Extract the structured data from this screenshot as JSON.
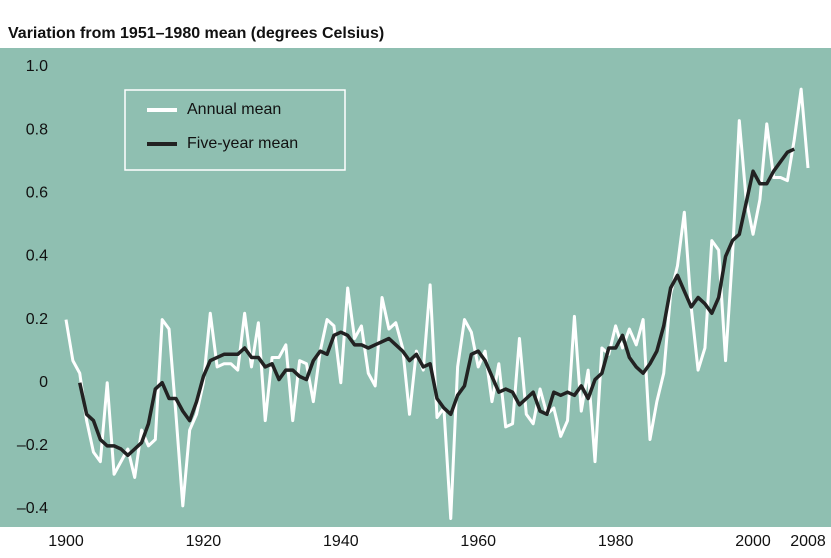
{
  "chart_data": {
    "type": "line",
    "title": "Variation from 1951–1980 mean (degrees Celsius)",
    "x": [
      1900,
      1901,
      1902,
      1903,
      1904,
      1905,
      1906,
      1907,
      1908,
      1909,
      1910,
      1911,
      1912,
      1913,
      1914,
      1915,
      1916,
      1917,
      1918,
      1919,
      1920,
      1921,
      1922,
      1923,
      1924,
      1925,
      1926,
      1927,
      1928,
      1929,
      1930,
      1931,
      1932,
      1933,
      1934,
      1935,
      1936,
      1937,
      1938,
      1939,
      1940,
      1941,
      1942,
      1943,
      1944,
      1945,
      1946,
      1947,
      1948,
      1949,
      1950,
      1951,
      1952,
      1953,
      1954,
      1955,
      1956,
      1957,
      1958,
      1959,
      1960,
      1961,
      1962,
      1963,
      1964,
      1965,
      1966,
      1967,
      1968,
      1969,
      1970,
      1971,
      1972,
      1973,
      1974,
      1975,
      1976,
      1977,
      1978,
      1979,
      1980,
      1981,
      1982,
      1983,
      1984,
      1985,
      1986,
      1987,
      1988,
      1989,
      1990,
      1991,
      1992,
      1993,
      1994,
      1995,
      1996,
      1997,
      1998,
      1999,
      2000,
      2001,
      2002,
      2003,
      2004,
      2005,
      2006,
      2007,
      2008
    ],
    "series": [
      {
        "name": "Annual mean",
        "color": "#ffffff",
        "values": [
          0.2,
          0.07,
          0.03,
          -0.12,
          -0.22,
          -0.25,
          0.0,
          -0.29,
          -0.25,
          -0.21,
          -0.3,
          -0.15,
          -0.2,
          -0.18,
          0.2,
          0.17,
          -0.1,
          -0.39,
          -0.15,
          -0.1,
          0.0,
          0.22,
          0.05,
          0.06,
          0.06,
          0.04,
          0.22,
          0.05,
          0.19,
          -0.12,
          0.08,
          0.08,
          0.12,
          -0.12,
          0.07,
          0.06,
          -0.06,
          0.1,
          0.2,
          0.18,
          0.0,
          0.3,
          0.14,
          0.18,
          0.03,
          -0.01,
          0.27,
          0.17,
          0.19,
          0.11,
          -0.1,
          0.1,
          0.04,
          0.31,
          -0.11,
          -0.08,
          -0.43,
          0.05,
          0.2,
          0.16,
          0.05,
          0.1,
          -0.06,
          0.06,
          -0.14,
          -0.13,
          0.14,
          -0.1,
          -0.13,
          -0.02,
          -0.1,
          -0.08,
          -0.17,
          -0.12,
          0.21,
          -0.09,
          0.04,
          -0.25,
          0.11,
          0.09,
          0.18,
          0.11,
          0.17,
          0.12,
          0.2,
          -0.18,
          -0.06,
          0.03,
          0.28,
          0.37,
          0.54,
          0.24,
          0.04,
          0.11,
          0.45,
          0.42,
          0.07,
          0.4,
          0.83,
          0.58,
          0.47,
          0.58,
          0.82,
          0.65,
          0.65,
          0.64,
          0.77,
          0.93,
          0.68
        ]
      },
      {
        "name": "Five-year mean",
        "color": "#222222",
        "values": [
          null,
          null,
          0.0,
          -0.1,
          -0.12,
          -0.18,
          -0.2,
          -0.2,
          -0.21,
          -0.23,
          -0.21,
          -0.19,
          -0.13,
          -0.02,
          0.0,
          -0.05,
          -0.05,
          -0.09,
          -0.12,
          -0.06,
          0.02,
          0.07,
          0.08,
          0.09,
          0.09,
          0.09,
          0.11,
          0.08,
          0.08,
          0.05,
          0.06,
          0.01,
          0.04,
          0.04,
          0.02,
          0.01,
          0.07,
          0.1,
          0.09,
          0.15,
          0.16,
          0.15,
          0.12,
          0.12,
          0.11,
          0.12,
          0.13,
          0.14,
          0.12,
          0.1,
          0.07,
          0.09,
          0.05,
          0.06,
          -0.05,
          -0.08,
          -0.1,
          -0.04,
          -0.01,
          0.09,
          0.1,
          0.07,
          0.02,
          -0.03,
          -0.02,
          -0.03,
          -0.07,
          -0.05,
          -0.03,
          -0.09,
          -0.1,
          -0.03,
          -0.04,
          -0.03,
          -0.04,
          -0.01,
          -0.05,
          0.01,
          0.03,
          0.11,
          0.11,
          0.15,
          0.08,
          0.05,
          0.03,
          0.06,
          0.1,
          0.18,
          0.3,
          0.34,
          0.29,
          0.24,
          0.27,
          0.25,
          0.22,
          0.27,
          0.4,
          0.45,
          0.47,
          0.57,
          0.67,
          0.63,
          0.63,
          0.67,
          0.7,
          0.73,
          0.74,
          null,
          null
        ]
      }
    ],
    "xlim": [
      1900,
      2008
    ],
    "xticks": [
      1900,
      1920,
      1940,
      1960,
      1980,
      2000,
      2008
    ],
    "ylim": [
      -0.4,
      1.0
    ],
    "yticks": [
      {
        "value": -0.4,
        "label": "–0.4"
      },
      {
        "value": -0.2,
        "label": "–0.2"
      },
      0,
      0.2,
      0.4,
      0.6,
      0.8,
      {
        "value": 1,
        "label": "1.0"
      }
    ],
    "background": "#8fbfb1",
    "legend": "upper left"
  }
}
